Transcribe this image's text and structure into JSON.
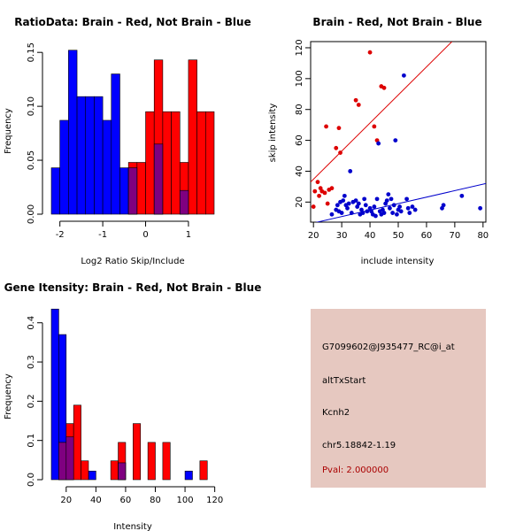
{
  "chart_data": [
    {
      "type": "bar",
      "title": "RatioData: Brain - Red, Not Brain - Blue",
      "xlabel": "Log2 Ratio Skip/Include",
      "ylabel": "Frequency",
      "xlim": [
        -2.2,
        1.6
      ],
      "ylim": [
        0,
        0.16
      ],
      "xticks": [
        -2,
        -1,
        0,
        1
      ],
      "yticks": [
        0.0,
        0.05,
        0.1,
        0.15
      ],
      "ytick_labels": [
        "0.00",
        "0.05",
        "0.10",
        "0.15"
      ],
      "bin_width": 0.2,
      "series": [
        {
          "name": "Not Brain",
          "color": "#0000ff",
          "bins": [
            [
              -2.2,
              0.043
            ],
            [
              -2.0,
              0.087
            ],
            [
              -1.8,
              0.152
            ],
            [
              -1.6,
              0.109
            ],
            [
              -1.4,
              0.109
            ],
            [
              -1.2,
              0.109
            ],
            [
              -1.0,
              0.087
            ],
            [
              -0.8,
              0.13
            ],
            [
              -0.6,
              0.043
            ],
            [
              -0.4,
              0.043
            ],
            [
              0.2,
              0.065
            ],
            [
              0.8,
              0.022
            ]
          ]
        },
        {
          "name": "Brain",
          "color": "#ff0000",
          "bins": [
            [
              -0.4,
              0.048
            ],
            [
              -0.2,
              0.048
            ],
            [
              0.0,
              0.095
            ],
            [
              0.2,
              0.143
            ],
            [
              0.4,
              0.095
            ],
            [
              0.6,
              0.095
            ],
            [
              0.8,
              0.048
            ],
            [
              1.0,
              0.143
            ],
            [
              1.2,
              0.095
            ],
            [
              1.4,
              0.095
            ]
          ]
        }
      ]
    },
    {
      "type": "scatter",
      "title": "Brain - Red, Not Brain - Blue",
      "xlabel": "include intensity",
      "ylabel": "skip intensity",
      "xlim": [
        19,
        81
      ],
      "ylim": [
        7,
        124
      ],
      "xticks": [
        20,
        30,
        40,
        50,
        60,
        70,
        80
      ],
      "yticks": [
        20,
        40,
        60,
        80,
        100,
        120
      ],
      "series": [
        {
          "name": "Brain",
          "color": "#dd0000",
          "points": [
            [
              20.5,
              27
            ],
            [
              20,
              17
            ],
            [
              21.5,
              33
            ],
            [
              22,
              24
            ],
            [
              22.5,
              29
            ],
            [
              23,
              27
            ],
            [
              24,
              26
            ],
            [
              24.5,
              69
            ],
            [
              25,
              19
            ],
            [
              25.5,
              28
            ],
            [
              26.5,
              29
            ],
            [
              28,
              55
            ],
            [
              29,
              68
            ],
            [
              29.5,
              52
            ],
            [
              35,
              86
            ],
            [
              36,
              83
            ],
            [
              40,
              117
            ],
            [
              41.5,
              69
            ],
            [
              42.5,
              60
            ],
            [
              44,
              95
            ],
            [
              45,
              94
            ]
          ],
          "fit_line": [
            [
              19,
              33
            ],
            [
              69,
              124
            ]
          ]
        },
        {
          "name": "Not Brain",
          "color": "#0000cc",
          "points": [
            [
              26.5,
              12
            ],
            [
              28,
              15
            ],
            [
              28.5,
              18
            ],
            [
              29,
              14
            ],
            [
              29.5,
              20
            ],
            [
              30,
              13
            ],
            [
              30.5,
              21
            ],
            [
              31,
              24
            ],
            [
              31.5,
              18
            ],
            [
              32,
              16
            ],
            [
              32.5,
              19
            ],
            [
              33,
              40
            ],
            [
              33.5,
              13
            ],
            [
              34,
              20
            ],
            [
              35,
              21
            ],
            [
              35.5,
              17
            ],
            [
              36,
              19
            ],
            [
              36.5,
              12
            ],
            [
              37,
              15
            ],
            [
              37.5,
              13
            ],
            [
              38,
              22
            ],
            [
              38.5,
              18
            ],
            [
              39,
              14
            ],
            [
              40,
              16
            ],
            [
              40.5,
              14
            ],
            [
              41,
              12
            ],
            [
              41.5,
              17
            ],
            [
              42,
              11
            ],
            [
              42.5,
              22
            ],
            [
              43,
              58
            ],
            [
              43.5,
              14
            ],
            [
              44,
              12
            ],
            [
              44.5,
              15
            ],
            [
              45,
              13
            ],
            [
              45.5,
              19
            ],
            [
              46,
              21
            ],
            [
              46.5,
              25
            ],
            [
              47,
              16
            ],
            [
              47.5,
              22
            ],
            [
              48,
              13
            ],
            [
              48.5,
              18
            ],
            [
              49,
              60
            ],
            [
              49.5,
              12
            ],
            [
              50,
              15
            ],
            [
              50.5,
              17
            ],
            [
              51,
              14
            ],
            [
              52,
              102
            ],
            [
              53,
              22
            ],
            [
              53.5,
              16
            ],
            [
              54,
              13
            ],
            [
              55,
              17
            ],
            [
              56,
              15
            ],
            [
              65.5,
              16
            ],
            [
              66,
              18
            ],
            [
              72.5,
              24
            ],
            [
              79,
              16
            ]
          ],
          "fit_line": [
            [
              19,
              6
            ],
            [
              81,
              32
            ]
          ]
        }
      ]
    },
    {
      "type": "bar",
      "title": "Gene Itensity: Brain - Red, Not Brain - Blue",
      "xlabel": "Intensity",
      "ylabel": "Frequency",
      "xlim": [
        10,
        122
      ],
      "ylim": [
        0,
        0.44
      ],
      "xticks": [
        20,
        40,
        60,
        80,
        100,
        120
      ],
      "yticks": [
        0.0,
        0.1,
        0.2,
        0.3,
        0.4
      ],
      "ytick_labels": [
        "0.0",
        "0.1",
        "0.2",
        "0.3",
        "0.4"
      ],
      "bin_width": 5,
      "series": [
        {
          "name": "Not Brain",
          "color": "#0000ff",
          "bins": [
            [
              10,
              0.435
            ],
            [
              15,
              0.37
            ],
            [
              20,
              0.109
            ],
            [
              35,
              0.022
            ],
            [
              55,
              0.043
            ],
            [
              100,
              0.022
            ]
          ]
        },
        {
          "name": "Brain",
          "color": "#ff0000",
          "bins": [
            [
              15,
              0.095
            ],
            [
              20,
              0.143
            ],
            [
              25,
              0.19
            ],
            [
              30,
              0.048
            ],
            [
              50,
              0.048
            ],
            [
              55,
              0.095
            ],
            [
              65,
              0.143
            ],
            [
              75,
              0.095
            ],
            [
              85,
              0.095
            ],
            [
              110,
              0.048
            ]
          ]
        }
      ]
    }
  ],
  "info": {
    "probe_id": "G7099602@J935477_RC@i_at",
    "event_type": "altTxStart",
    "gene": "Kcnh2",
    "location": "chr5.18842-1.19",
    "pval": "Pval: 2.000000",
    "pval_color": "#aa0000"
  }
}
